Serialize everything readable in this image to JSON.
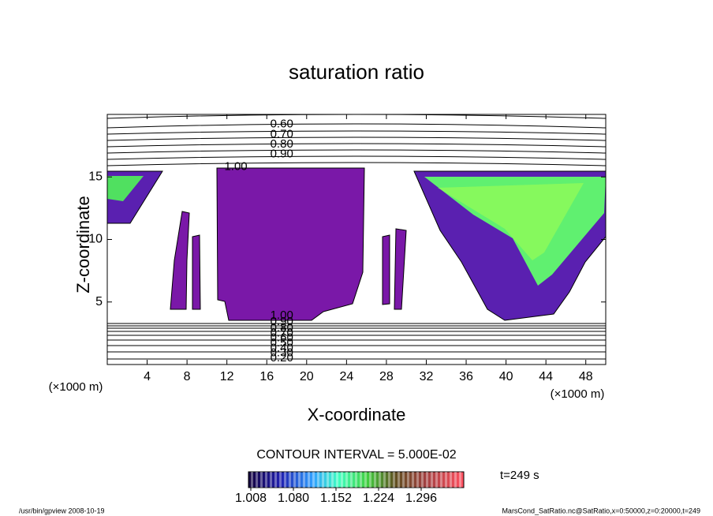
{
  "chart_data": {
    "type": "contour",
    "title": "saturation ratio",
    "xlabel": "X-coordinate",
    "ylabel": "Z-coordinate",
    "x_unit_label": "(×1000 m)",
    "y_unit_label": "(×1000 m)",
    "xlim": [
      0,
      50
    ],
    "xticks": [
      4,
      8,
      12,
      16,
      20,
      24,
      28,
      32,
      36,
      40,
      44,
      48
    ],
    "ylim": [
      0,
      20
    ],
    "yticks": [
      5,
      10,
      15
    ],
    "contour_labels": [
      {
        "value": {
          "value": 0.6,
          "label": "0.60"
        },
        "x": 17.5,
        "z": 19.2
      },
      {
        "value": {
          "value": 0.7,
          "label": "0.70"
        },
        "x": 17.5,
        "z": 18.4
      },
      {
        "value": {
          "value": 0.8,
          "label": "0.80"
        },
        "x": 17.5,
        "z": 17.6
      },
      {
        "value": {
          "value": 0.9,
          "label": "0.90"
        },
        "x": 17.5,
        "z": 16.8
      },
      {
        "value": {
          "value": 1.0,
          "label": "1.00"
        },
        "x": 12.9,
        "z": 15.8
      },
      {
        "value": {
          "value": 1.0,
          "label": "1.00"
        },
        "x": 17.5,
        "z": 3.9
      },
      {
        "value": {
          "value": 0.9,
          "label": "0.90"
        },
        "x": 17.5,
        "z": 3.4
      },
      {
        "value": {
          "value": 0.8,
          "label": "0.80"
        },
        "x": 17.5,
        "z": 2.9
      },
      {
        "value": {
          "value": 0.7,
          "label": "0.70"
        },
        "x": 17.5,
        "z": 2.5
      },
      {
        "value": {
          "value": 0.6,
          "label": "0.60"
        },
        "x": 17.5,
        "z": 2.1
      },
      {
        "value": {
          "value": 0.5,
          "label": "0.50"
        },
        "x": 17.5,
        "z": 1.7
      },
      {
        "value": {
          "value": 0.4,
          "label": "0.40"
        },
        "x": 17.5,
        "z": 1.3
      },
      {
        "value": {
          "value": 0.3,
          "label": "0.30"
        },
        "x": 17.5,
        "z": 0.9
      },
      {
        "value": {
          "value": 0.2,
          "label": "0.20"
        },
        "x": 17.5,
        "z": 0.5
      }
    ],
    "contour_interval": "CONTOUR INTERVAL = 5.000E-02",
    "time_label": "t=249 s",
    "colorbar": {
      "lim": [
        1.004,
        1.368
      ],
      "ticks": [
        1.008,
        {
          "value": 1.08,
          "label": "1.080"
        },
        1.152,
        1.224,
        1.296
      ]
    },
    "footer_left": "/usr/bin/gpview  2008-10-19",
    "footer_right": "MarsCond_SatRatio.nc@SatRatio,x=0:50000,z=0:20000,t=249"
  }
}
